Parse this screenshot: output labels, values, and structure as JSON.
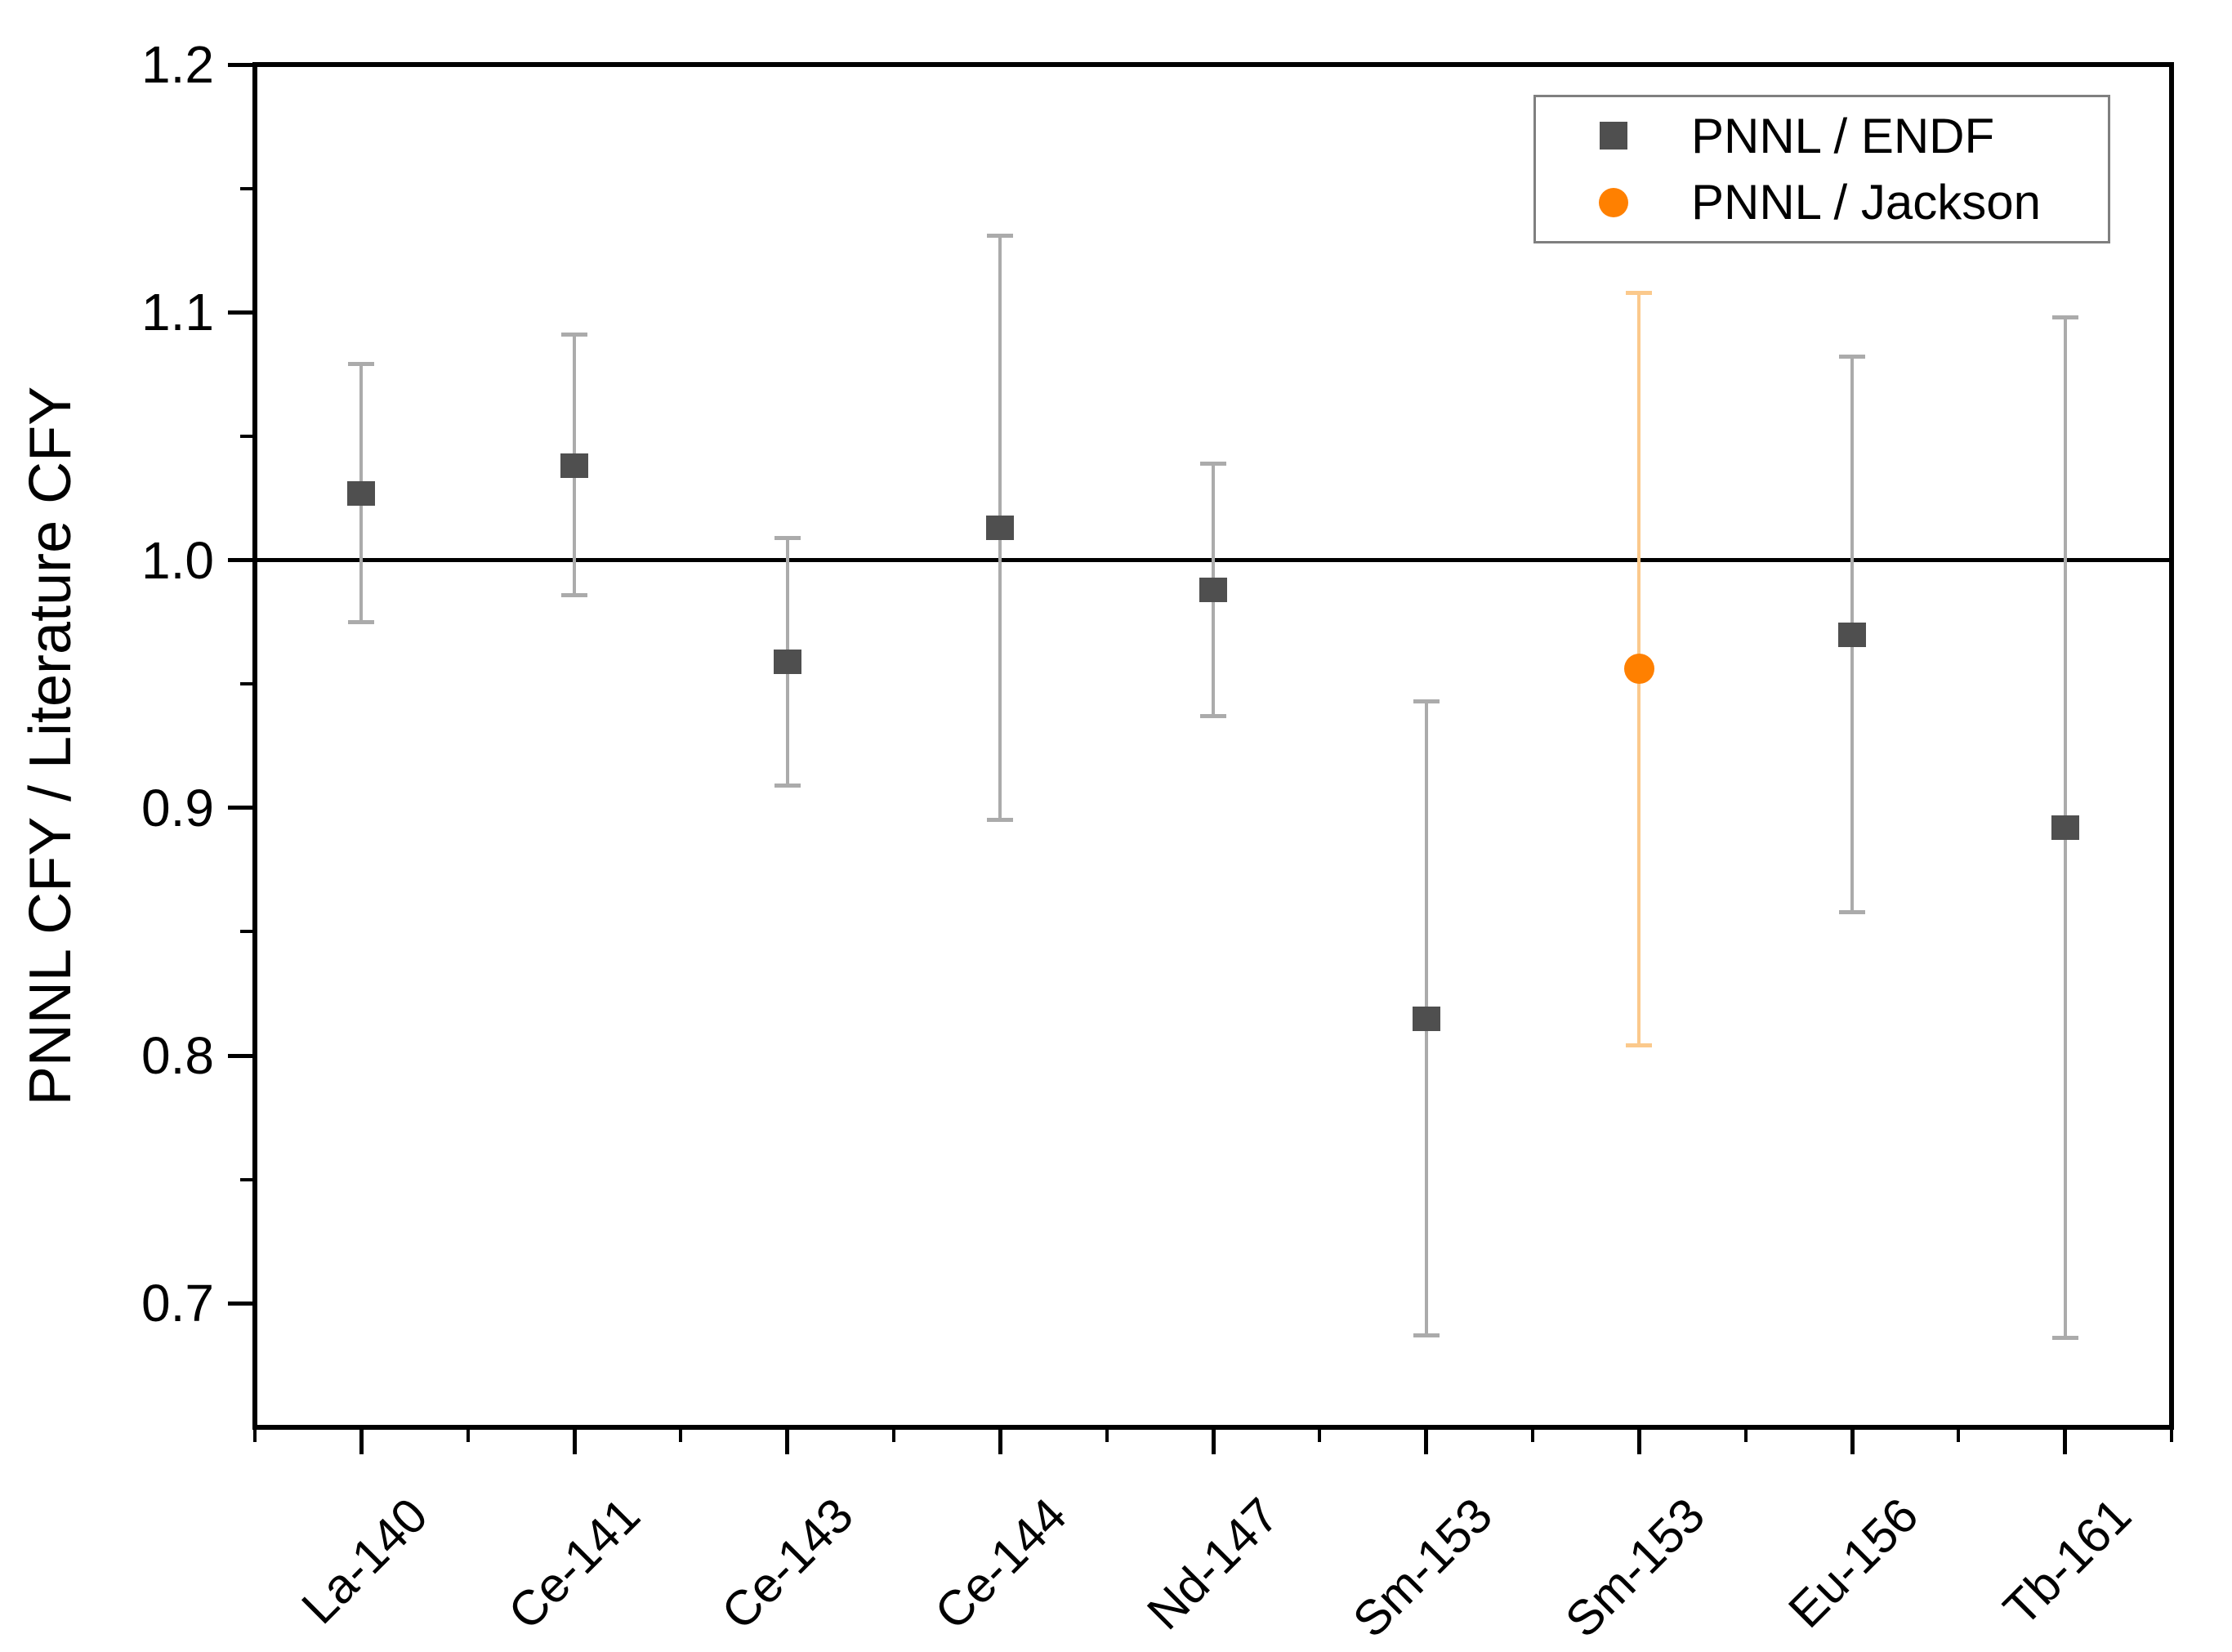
{
  "chart_data": {
    "type": "scatter",
    "title": "",
    "xlabel": "",
    "ylabel": "PNNL CFY / Literature CFY",
    "ylim": [
      0.65,
      1.2
    ],
    "yticks_major": [
      1.2,
      1.1,
      1.0,
      0.9,
      0.8,
      0.7
    ],
    "yticks_minor": [
      1.15,
      1.05,
      0.95,
      0.85,
      0.75
    ],
    "ytick_decimals": 1,
    "reference_line_y": 1.0,
    "grid": "off",
    "legend_position": "top-right",
    "categories": [
      "La-140",
      "Ce-141",
      "Ce-143",
      "Ce-144",
      "Nd-147",
      "Sm-153",
      "Sm-153",
      "Eu-156",
      "Tb-161"
    ],
    "series": [
      {
        "name": "PNNL / ENDF",
        "marker": "square",
        "color": "#4f4f4f",
        "errorbar_color": "#ababab",
        "points": [
          {
            "category": "La-140",
            "category_index": 0,
            "value": 1.027,
            "error_plus": 0.052,
            "error_minus": 0.052
          },
          {
            "category": "Ce-141",
            "category_index": 1,
            "value": 1.038,
            "error_plus": 0.053,
            "error_minus": 0.052
          },
          {
            "category": "Ce-143",
            "category_index": 2,
            "value": 0.959,
            "error_plus": 0.05,
            "error_minus": 0.05
          },
          {
            "category": "Ce-144",
            "category_index": 3,
            "value": 1.013,
            "error_plus": 0.118,
            "error_minus": 0.118
          },
          {
            "category": "Nd-147",
            "category_index": 4,
            "value": 0.988,
            "error_plus": 0.051,
            "error_minus": 0.051
          },
          {
            "category": "Sm-153",
            "category_index": 5,
            "value": 0.815,
            "error_plus": 0.128,
            "error_minus": 0.128
          },
          {
            "category": "Eu-156",
            "category_index": 7,
            "value": 0.97,
            "error_plus": 0.112,
            "error_minus": 0.112
          },
          {
            "category": "Tb-161",
            "category_index": 8,
            "value": 0.892,
            "error_plus": 0.206,
            "error_minus": 0.206
          }
        ]
      },
      {
        "name": "PNNL / Jackson",
        "marker": "circle",
        "color": "#ff8000",
        "errorbar_color": "#fbc98c",
        "points": [
          {
            "category": "Sm-153",
            "category_index": 6,
            "value": 0.956,
            "error_plus": 0.152,
            "error_minus": 0.152
          }
        ]
      }
    ]
  }
}
